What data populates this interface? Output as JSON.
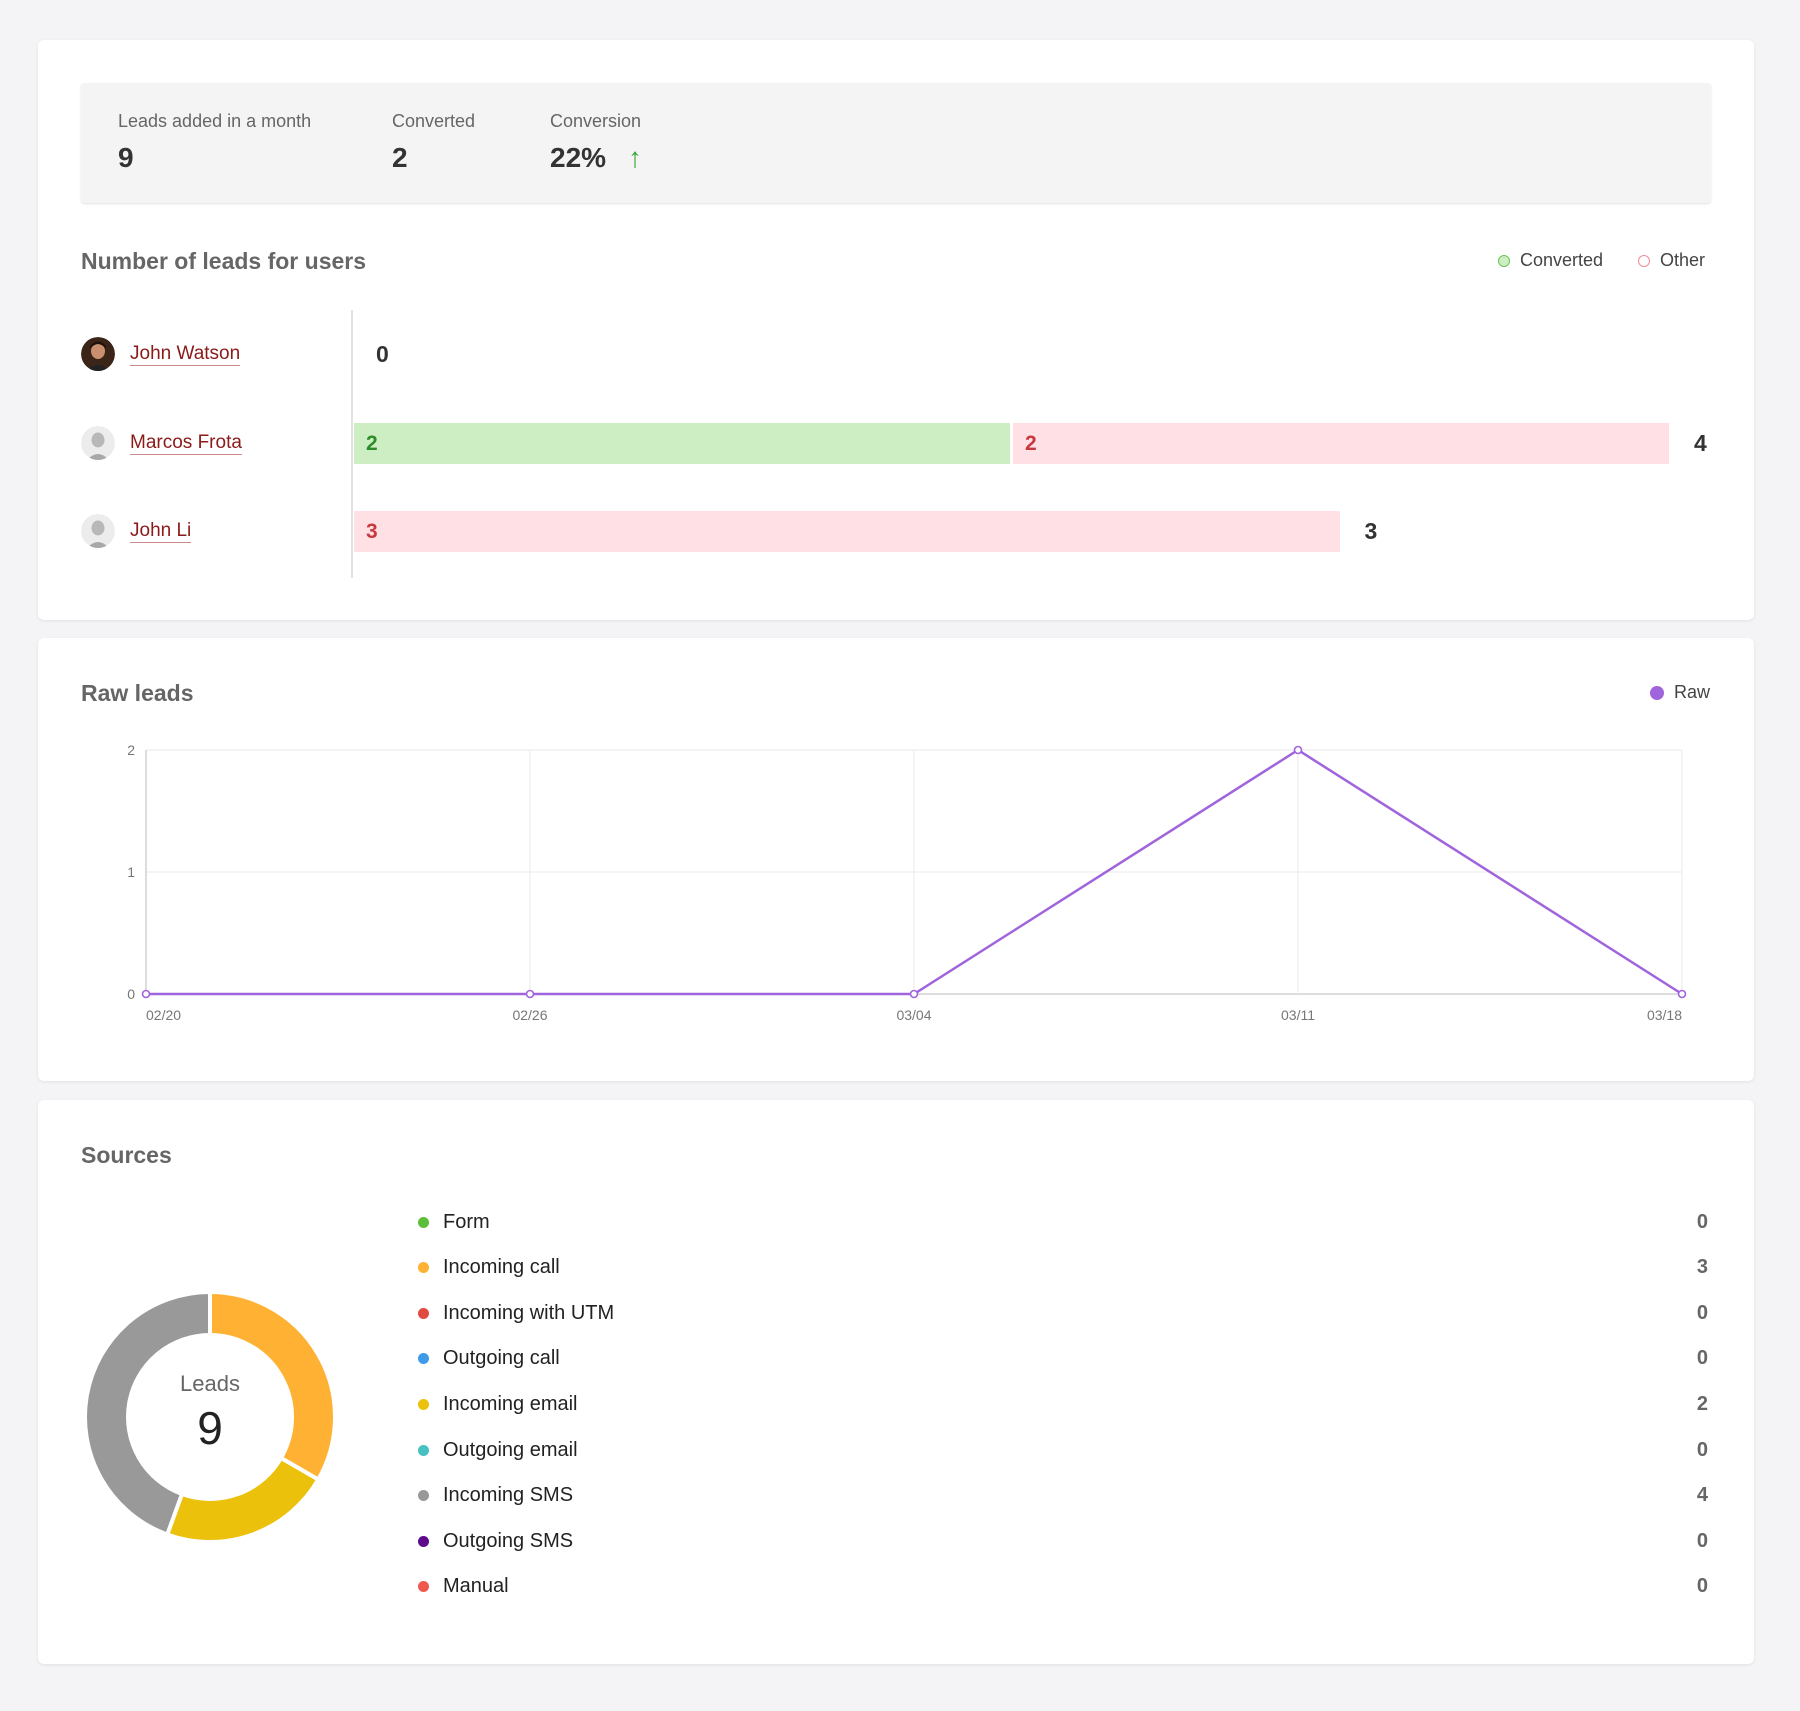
{
  "stats": {
    "leads_added_label": "Leads added in a month",
    "leads_added_value": "9",
    "converted_label": "Converted",
    "converted_value": "2",
    "conversion_label": "Conversion",
    "conversion_value": "22%",
    "conversion_trend_icon": "arrow-up-icon",
    "trend_color": "#3aa935"
  },
  "leads_for_users": {
    "title": "Number of leads for users",
    "legend": {
      "converted": "Converted",
      "other": "Other"
    },
    "colors": {
      "converted": "#cdeec2",
      "other": "#ffe1e5"
    },
    "max_total": 4,
    "users": [
      {
        "name": "John Watson",
        "converted": 0,
        "other": 0,
        "converted_label": "",
        "other_label": "",
        "total": "0"
      },
      {
        "name": "Marcos Frota",
        "converted": 2,
        "other": 2,
        "converted_label": "2",
        "other_label": "2",
        "total": "4"
      },
      {
        "name": "John Li",
        "converted": 0,
        "other": 3,
        "converted_label": "",
        "other_label": "3",
        "total": "3"
      }
    ]
  },
  "raw_leads": {
    "title": "Raw leads",
    "legend": "Raw",
    "color": "#a064dc"
  },
  "chart_data": {
    "type": "line",
    "title": "Raw leads",
    "x": [
      "02/20",
      "02/26",
      "03/04",
      "03/11",
      "03/18"
    ],
    "series": [
      {
        "name": "Raw",
        "values": [
          0,
          0,
          0,
          2,
          0
        ]
      }
    ],
    "ylim": [
      0,
      2
    ],
    "yticks": [
      "0",
      "1",
      "2"
    ],
    "xlabel": "",
    "ylabel": "",
    "grid": true,
    "legend_position": "top-right"
  },
  "sources": {
    "title": "Sources",
    "center_label": "Leads",
    "center_value": "9",
    "items": [
      {
        "name": "Form",
        "count": "0",
        "value": 0,
        "color": "#5cbf3a"
      },
      {
        "name": "Incoming call",
        "count": "3",
        "value": 3,
        "color": "#ffb133"
      },
      {
        "name": "Incoming with UTM",
        "count": "0",
        "value": 0,
        "color": "#e04a3f"
      },
      {
        "name": "Outgoing call",
        "count": "0",
        "value": 0,
        "color": "#3d9be9"
      },
      {
        "name": "Incoming email",
        "count": "2",
        "value": 2,
        "color": "#ecc10b"
      },
      {
        "name": "Outgoing email",
        "count": "0",
        "value": 0,
        "color": "#47c1c1"
      },
      {
        "name": "Incoming SMS",
        "count": "4",
        "value": 4,
        "color": "#999999"
      },
      {
        "name": "Outgoing SMS",
        "count": "0",
        "value": 0,
        "color": "#5e0a8a"
      },
      {
        "name": "Manual",
        "count": "0",
        "value": 0,
        "color": "#ef5a4c"
      }
    ]
  }
}
